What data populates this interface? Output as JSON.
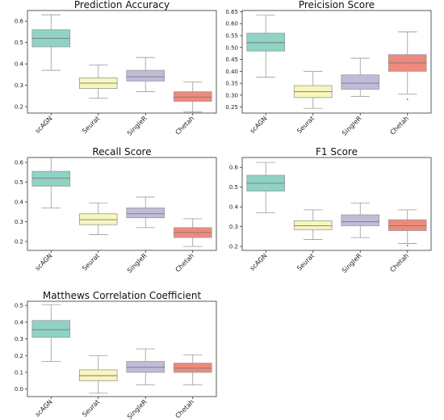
{
  "colors": {
    "scAGN": "#8fd3c4",
    "Seurat": "#f7f6bd",
    "SingleR": "#bfbcd9",
    "Chetah": "#ee8a7d",
    "whisker": "#999999",
    "median": "#777777",
    "frame": "#333333"
  },
  "chart_data": [
    {
      "type": "box",
      "title": "Prediction Accuracy",
      "categories": [
        "scAGN",
        "Seurat",
        "SingleR",
        "Chetah"
      ],
      "ylim": [
        0.17,
        0.65
      ],
      "yticks": [
        "0.2",
        "0.3",
        "0.4",
        "0.5",
        "0.6"
      ],
      "boxes": [
        {
          "min": 0.37,
          "q1": 0.48,
          "median": 0.52,
          "q3": 0.56,
          "max": 0.63
        },
        {
          "min": 0.24,
          "q1": 0.285,
          "median": 0.31,
          "q3": 0.335,
          "max": 0.395
        },
        {
          "min": 0.27,
          "q1": 0.32,
          "median": 0.34,
          "q3": 0.37,
          "max": 0.43
        },
        {
          "min": 0.175,
          "q1": 0.225,
          "median": 0.245,
          "q3": 0.27,
          "max": 0.315
        }
      ]
    },
    {
      "type": "box",
      "title": "Preicision Score",
      "categories": [
        "scAGN",
        "Seurat",
        "SingleR",
        "Chetah"
      ],
      "ylim": [
        0.225,
        0.655
      ],
      "yticks": [
        "0.25",
        "0.30",
        "0.35",
        "0.40",
        "0.45",
        "0.50",
        "0.55",
        "0.60",
        "0.65"
      ],
      "boxes": [
        {
          "min": 0.375,
          "q1": 0.485,
          "median": 0.52,
          "q3": 0.56,
          "max": 0.635
        },
        {
          "min": 0.245,
          "q1": 0.29,
          "median": 0.315,
          "q3": 0.34,
          "max": 0.4
        },
        {
          "min": 0.295,
          "q1": 0.325,
          "median": 0.35,
          "q3": 0.385,
          "max": 0.455
        },
        {
          "min": 0.305,
          "q1": 0.4,
          "median": 0.435,
          "q3": 0.47,
          "max": 0.565,
          "outliers": [
            0.283
          ]
        }
      ]
    },
    {
      "type": "box",
      "title": "Recall Score",
      "categories": [
        "scAGN",
        "Seurat",
        "SingleR",
        "Chetah"
      ],
      "ylim": [
        0.155,
        0.625
      ],
      "yticks": [
        "0.2",
        "0.3",
        "0.4",
        "0.5",
        "0.6"
      ],
      "boxes": [
        {
          "min": 0.37,
          "q1": 0.48,
          "median": 0.52,
          "q3": 0.555,
          "max": 0.625
        },
        {
          "min": 0.235,
          "q1": 0.285,
          "median": 0.31,
          "q3": 0.34,
          "max": 0.395
        },
        {
          "min": 0.27,
          "q1": 0.32,
          "median": 0.34,
          "q3": 0.37,
          "max": 0.425
        },
        {
          "min": 0.175,
          "q1": 0.22,
          "median": 0.245,
          "q3": 0.27,
          "max": 0.315
        }
      ]
    },
    {
      "type": "box",
      "title": "F1 Score",
      "categories": [
        "scAGN",
        "Seurat",
        "SingleR",
        "Chetah"
      ],
      "ylim": [
        0.18,
        0.65
      ],
      "yticks": [
        "0.2",
        "0.3",
        "0.4",
        "0.5",
        "0.6"
      ],
      "boxes": [
        {
          "min": 0.37,
          "q1": 0.48,
          "median": 0.52,
          "q3": 0.56,
          "max": 0.625
        },
        {
          "min": 0.235,
          "q1": 0.285,
          "median": 0.305,
          "q3": 0.33,
          "max": 0.385
        },
        {
          "min": 0.245,
          "q1": 0.305,
          "median": 0.325,
          "q3": 0.36,
          "max": 0.42
        },
        {
          "min": 0.215,
          "q1": 0.28,
          "median": 0.305,
          "q3": 0.335,
          "max": 0.385,
          "outliers": [
            0.205
          ]
        }
      ]
    },
    {
      "type": "box",
      "title": "Matthews Correlation Coefficient",
      "categories": [
        "scAGN",
        "Seurat",
        "SingleR",
        "Chetah"
      ],
      "ylim": [
        -0.045,
        0.525
      ],
      "yticks": [
        "0.0",
        "0.1",
        "0.2",
        "0.3",
        "0.4",
        "0.5"
      ],
      "boxes": [
        {
          "min": 0.165,
          "q1": 0.31,
          "median": 0.355,
          "q3": 0.41,
          "max": 0.505
        },
        {
          "min": -0.025,
          "q1": 0.05,
          "median": 0.08,
          "q3": 0.115,
          "max": 0.2
        },
        {
          "min": 0.025,
          "q1": 0.1,
          "median": 0.13,
          "q3": 0.165,
          "max": 0.24
        },
        {
          "min": 0.025,
          "q1": 0.1,
          "median": 0.125,
          "q3": 0.155,
          "max": 0.205
        }
      ]
    }
  ]
}
